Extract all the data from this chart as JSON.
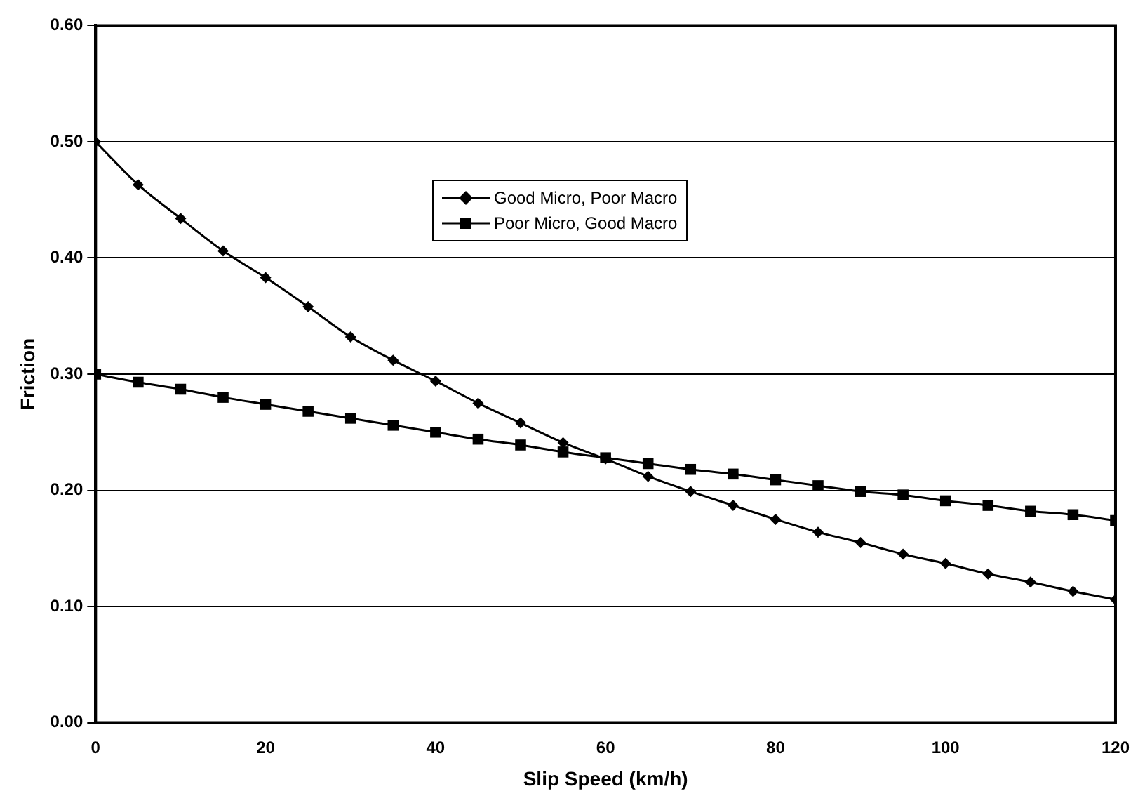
{
  "chart_data": {
    "type": "line",
    "xlabel": "Slip Speed (km/h)",
    "ylabel": "Friction",
    "x": [
      0,
      5,
      10,
      15,
      20,
      25,
      30,
      35,
      40,
      45,
      50,
      55,
      60,
      65,
      70,
      75,
      80,
      85,
      90,
      95,
      100,
      105,
      110,
      115,
      120
    ],
    "series": [
      {
        "name": "Good Micro, Poor Macro",
        "color": "#000000",
        "marker": "diamond",
        "values": [
          0.5,
          0.463,
          0.434,
          0.406,
          0.383,
          0.358,
          0.332,
          0.312,
          0.294,
          0.275,
          0.258,
          0.241,
          0.227,
          0.212,
          0.199,
          0.187,
          0.175,
          0.164,
          0.155,
          0.145,
          0.137,
          0.128,
          0.121,
          0.113,
          0.106
        ]
      },
      {
        "name": "Poor Micro, Good Macro",
        "color": "#000000",
        "marker": "square",
        "values": [
          0.3,
          0.293,
          0.287,
          0.28,
          0.274,
          0.268,
          0.262,
          0.256,
          0.25,
          0.244,
          0.239,
          0.233,
          0.228,
          0.223,
          0.218,
          0.214,
          0.209,
          0.204,
          0.199,
          0.196,
          0.191,
          0.187,
          0.182,
          0.179,
          0.174
        ]
      }
    ],
    "xlim": [
      0,
      120
    ],
    "xticks": [
      0,
      20,
      40,
      60,
      80,
      100,
      120
    ],
    "ylim": [
      0,
      0.6
    ],
    "yticks": [
      {
        "value": 0,
        "label": "0.00"
      },
      {
        "value": 0.1,
        "label": "0.10"
      },
      {
        "value": 0.2,
        "label": "0.20"
      },
      {
        "value": 0.3,
        "label": "0.30"
      },
      {
        "value": 0.4,
        "label": "0.40"
      },
      {
        "value": 0.5,
        "label": "0.50"
      },
      {
        "value": 0.6,
        "label": "0.60"
      }
    ],
    "grid": "y",
    "legend": "top",
    "line_style": "solid"
  }
}
